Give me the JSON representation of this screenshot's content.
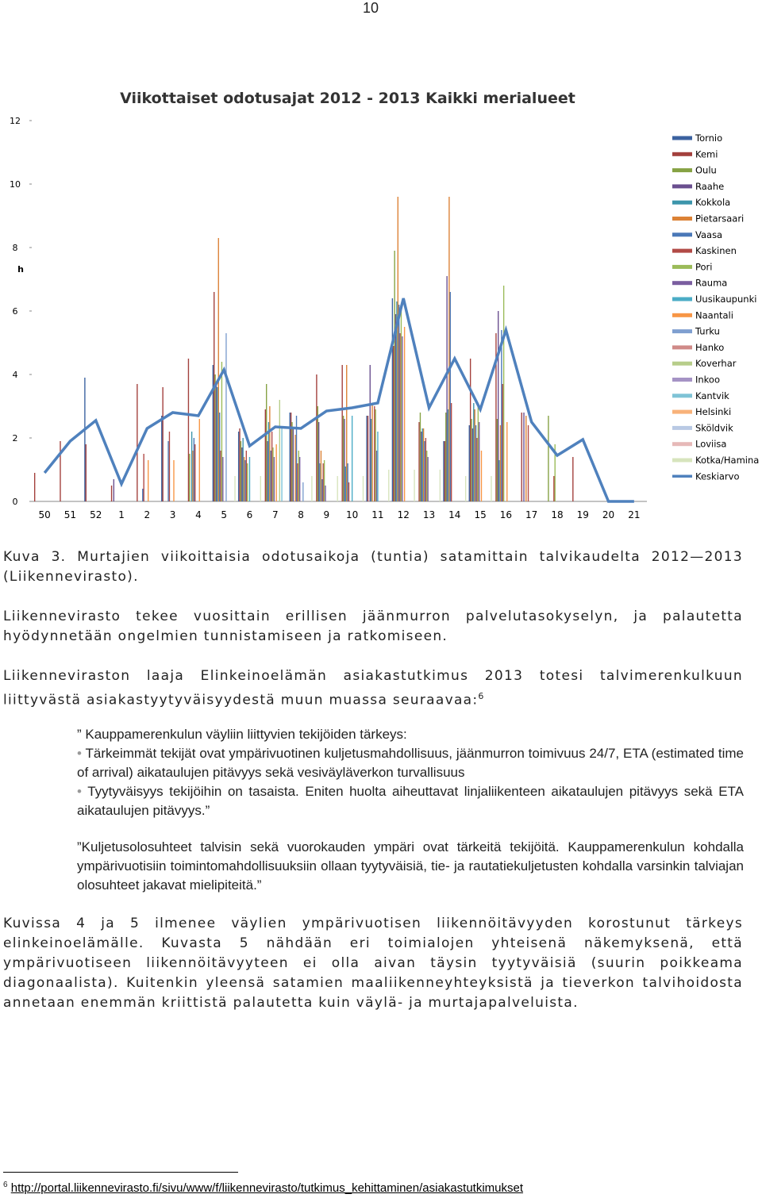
{
  "page_number": "10",
  "chart_data": {
    "type": "bar",
    "title": "Viikottaiset odotusajat 2012 - 2013 Kaikki merialueet",
    "y_label": "h",
    "categories": [
      "50",
      "51",
      "52",
      "1",
      "2",
      "3",
      "4",
      "5",
      "6",
      "7",
      "8",
      "9",
      "10",
      "11",
      "12",
      "13",
      "14",
      "15",
      "16",
      "17",
      "18",
      "19",
      "20",
      "21"
    ],
    "ylim": [
      0,
      12
    ],
    "yticks": [
      0,
      2,
      4,
      6,
      8,
      10,
      12
    ],
    "grid": false,
    "series": [
      {
        "name": "Tornio",
        "color": "#3b62a0",
        "values": [
          0,
          0,
          3.9,
          0,
          0,
          2.7,
          0,
          4.3,
          2.2,
          0,
          2.8,
          0,
          0,
          2.7,
          6.4,
          0,
          1.9,
          2.4,
          0,
          0,
          0,
          0,
          0,
          0
        ]
      },
      {
        "name": "Kemi",
        "color": "#a3403d",
        "values": [
          0.9,
          1.9,
          1.8,
          0.5,
          3.7,
          3.6,
          4.5,
          6.6,
          2.3,
          2.9,
          2.8,
          4.0,
          4.3,
          2.7,
          4.9,
          2.5,
          1.9,
          4.5,
          5.3,
          2.8,
          0,
          1.4,
          0,
          0
        ]
      },
      {
        "name": "Oulu",
        "color": "#86a244",
        "values": [
          0,
          0,
          0,
          0,
          0,
          0,
          1.5,
          4.0,
          1.9,
          3.7,
          2.5,
          3.0,
          2.7,
          0,
          7.9,
          2.8,
          2.8,
          2.6,
          2.6,
          0,
          2.7,
          0,
          0,
          0
        ]
      },
      {
        "name": "Raahe",
        "color": "#6a4f8f",
        "values": [
          0,
          0,
          0,
          0.7,
          0,
          0,
          0,
          3.7,
          1.7,
          1.9,
          2.3,
          2.5,
          2.6,
          4.3,
          5.9,
          2.2,
          7.1,
          2.3,
          6.0,
          2.8,
          0,
          0,
          0,
          0
        ]
      },
      {
        "name": "Kokkola",
        "color": "#3c95ab",
        "values": [
          0,
          0,
          0,
          0,
          0,
          0,
          2.2,
          3.6,
          2.0,
          2.5,
          0,
          1.2,
          1.1,
          2.6,
          6.3,
          2.3,
          2.9,
          3.1,
          1.3,
          0,
          0,
          0,
          0,
          0
        ]
      },
      {
        "name": "Pietarsaari",
        "color": "#dc8236",
        "values": [
          0,
          0,
          0,
          0,
          0,
          0,
          1.6,
          8.3,
          1.4,
          3.0,
          2.1,
          1.6,
          4.3,
          3.1,
          9.6,
          2.3,
          9.6,
          2.9,
          2.4,
          2.7,
          0,
          0,
          0,
          0
        ]
      },
      {
        "name": "Vaasa",
        "color": "#4a78b8",
        "values": [
          0,
          0,
          0,
          0,
          0.4,
          1.9,
          2.0,
          2.8,
          1.3,
          1.6,
          2.7,
          0.7,
          1.2,
          0,
          6.2,
          1.9,
          6.6,
          2.4,
          5.4,
          0,
          0,
          0,
          0,
          0
        ]
      },
      {
        "name": "Kaskinen",
        "color": "#b24b47",
        "values": [
          0,
          0,
          0,
          0,
          1.5,
          2.2,
          1.8,
          1.6,
          1.6,
          2.2,
          1.2,
          1.2,
          0.6,
          3.0,
          5.3,
          2.0,
          3.1,
          2.0,
          3.7,
          2.4,
          0.8,
          0,
          0,
          0
        ]
      },
      {
        "name": "Pori",
        "color": "#9bbb59",
        "values": [
          0,
          0,
          0,
          0,
          0,
          0,
          0,
          4.4,
          1.2,
          1.7,
          1.6,
          1.3,
          0,
          2.9,
          6.2,
          1.6,
          0,
          3.0,
          6.8,
          0,
          1.8,
          0,
          0,
          0
        ]
      },
      {
        "name": "Rauma",
        "color": "#7a5ea0",
        "values": [
          0,
          0,
          0,
          0,
          0,
          0,
          0,
          1.4,
          0,
          1.4,
          1.4,
          0.5,
          0,
          1.6,
          5.2,
          1.4,
          0,
          2.5,
          0,
          0,
          0,
          0,
          0,
          0
        ]
      },
      {
        "name": "Uusikaupunki",
        "color": "#4bacc6",
        "values": [
          0,
          0,
          0,
          0,
          0,
          0,
          0,
          0,
          1.4,
          0,
          0,
          0,
          2.7,
          2.2,
          0,
          0,
          0,
          0,
          0,
          0,
          0,
          0,
          0,
          0
        ]
      },
      {
        "name": "Naantali",
        "color": "#f79646",
        "values": [
          0,
          0,
          0,
          0,
          1.3,
          1.3,
          2.6,
          0,
          0,
          1.8,
          0,
          0,
          0,
          0,
          5.5,
          0,
          0,
          1.6,
          2.5,
          0,
          0,
          0,
          0,
          0
        ]
      },
      {
        "name": "Turku",
        "color": "#7f9fd0",
        "values": [
          0,
          0,
          0,
          0,
          0,
          0,
          0,
          5.3,
          0,
          0,
          0.6,
          0,
          0,
          0,
          0,
          0,
          0,
          0,
          0,
          0,
          0,
          0,
          0,
          0
        ]
      },
      {
        "name": "Hanko",
        "color": "#d08a88",
        "values": [
          0,
          0,
          0,
          0,
          0,
          0,
          0,
          0,
          0,
          0,
          0,
          0,
          0,
          0,
          0,
          0,
          0,
          0,
          0,
          0,
          0,
          0,
          0,
          0
        ]
      },
      {
        "name": "Koverhar",
        "color": "#b7cd8a",
        "values": [
          0,
          0,
          0,
          0,
          0,
          0,
          0,
          0,
          0,
          3.2,
          0,
          0,
          0,
          0,
          0,
          0,
          0,
          0,
          0,
          0,
          0,
          0,
          0,
          0
        ]
      },
      {
        "name": "Inkoo",
        "color": "#a593c5",
        "values": [
          0,
          0,
          0,
          0,
          0,
          0,
          0,
          0,
          0,
          0,
          0,
          0,
          0,
          0,
          0,
          0,
          0,
          0,
          0,
          0,
          0,
          0,
          0,
          0
        ]
      },
      {
        "name": "Kantvik",
        "color": "#7fc3d6",
        "values": [
          0,
          0,
          0,
          0,
          0,
          0,
          0,
          0,
          0,
          2.3,
          0,
          0,
          0,
          0,
          0,
          0,
          0,
          0,
          0,
          0,
          0,
          0,
          0,
          0
        ]
      },
      {
        "name": "Helsinki",
        "color": "#f8b27a",
        "values": [
          0,
          0,
          0,
          0,
          0,
          0,
          0,
          0,
          0,
          0,
          0,
          0,
          0,
          0,
          0,
          0,
          0,
          0,
          0,
          0,
          0,
          0,
          0,
          0
        ]
      },
      {
        "name": "Sköldvik",
        "color": "#b9c9e4",
        "values": [
          0,
          0,
          0,
          0,
          0,
          0,
          0,
          0,
          0,
          0,
          0,
          0,
          0,
          0,
          0,
          0,
          0,
          0,
          0,
          0,
          0,
          0,
          0,
          0
        ]
      },
      {
        "name": "Loviisa",
        "color": "#e6b9b8",
        "values": [
          0,
          0,
          0,
          0,
          0,
          0,
          0,
          0,
          0,
          0,
          0,
          0,
          0,
          0,
          0,
          0,
          0,
          0,
          0,
          0,
          0,
          0,
          0,
          0
        ]
      },
      {
        "name": "Kotka/Hamina",
        "color": "#d7e4bd",
        "values": [
          0,
          0,
          0,
          0,
          0,
          0,
          0,
          0.8,
          0.8,
          0,
          0.8,
          0.8,
          0.8,
          1.0,
          1.0,
          1.0,
          0.8,
          0.8,
          0,
          0,
          0,
          0,
          0,
          0
        ]
      },
      {
        "name": "Keskiarvo",
        "color": "#4f81bd",
        "type": "line",
        "values": [
          0.9,
          1.9,
          2.55,
          0.55,
          2.3,
          2.8,
          2.7,
          4.15,
          1.75,
          2.35,
          2.3,
          2.85,
          2.95,
          3.1,
          6.4,
          2.95,
          4.5,
          2.9,
          5.4,
          2.5,
          1.45,
          1.95,
          0,
          0
        ]
      }
    ]
  },
  "caption": "Kuva 3. Murtajien viikoittaisia odotusaikoja (tuntia) satamittain talvikaudelta 2012—2013 (Liikennevirasto).",
  "paragraphs": [
    "Liikennevirasto tekee vuosittain erillisen jäänmurron palvelutasokyselyn, ja palautetta hyödynnetään ongelmien tunnistamiseen ja ratkomiseen.",
    "Liikenneviraston laaja Elinkeinoelämän asiakastutkimus 2013 totesi talvimerenkulkuun liittyvästä asiakastyytyväisyydestä muun muassa seuraavaa:"
  ],
  "footnote_ref": "6",
  "quote": {
    "heading": "” Kauppamerenkulun väyliin liittyvien tekijöiden tärkeys:",
    "bullets": [
      "Tärkeimmät tekijät ovat ympärivuotinen kuljetusmahdollisuus, jäänmurron toimivuus 24/7, ETA (estimated time of arrival) aikataulujen pitävyys sekä vesiväyläverkon turvallisuus",
      "Tyytyväisyys tekijöihin on tasaista. Eniten huolta aiheuttavat linjaliikenteen aikataulujen pitävyys sekä ETA aikataulujen pitävyys.”"
    ],
    "paragraph": "”Kuljetusolosuhteet talvisin sekä vuorokauden ympäri ovat tärkeitä tekijöitä. Kauppamerenkulun kohdalla ympärivuotisiin toimintomahdollisuuksiin ollaan tyytyväisiä, tie- ja rautatiekuljetusten kohdalla varsinkin talviajan olosuhteet jakavat mielipiteitä.”"
  },
  "closing": "Kuvissa 4 ja 5 ilmenee väylien ympärivuotisen liikennöitävyyden korostunut tärkeys elinkeinoelämälle. Kuvasta 5 nähdään eri toimialojen yhteisenä näkemyksenä, että ympärivuotiseen liikennöitävyyteen ei olla aivan täysin tyytyväisiä (suurin poikkeama diagonaalista). Kuitenkin yleensä satamien maaliikenneyhteyksistä ja tieverkon talvihoidosta annetaan enemmän kriittistä palautetta kuin väylä- ja murtajapalveluista.",
  "footnote": {
    "number": "6",
    "url": "http://portal.liikennevirasto.fi/sivu/www/f/liikennevirasto/tutkimus_kehittaminen/asiakastutkimukset"
  }
}
